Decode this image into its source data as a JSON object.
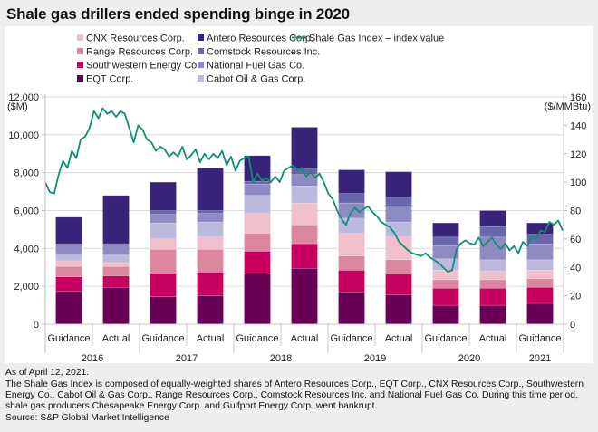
{
  "title": "Shale gas drillers ended spending binge in 2020",
  "notes": {
    "as_of": "As of April 12, 2021.",
    "description": "The Shale Gas Index is composed of equally-weighted shares of Antero Resources Corp., EQT Corp., CNX Resources Corp., Southwestern Energy Co., Cabot Oil & Gas Corp., Range Resources Corp., Comstock Resources Inc. and National Fuel Gas Co. During this time period, shale gas producers Chesapeake Energy Corp. and Gulfport Energy Corp. went bankrupt.",
    "source": "Source: S&P Global Market Intelligence"
  },
  "chart_data": {
    "type": "bar",
    "stacked": true,
    "title": "Shale gas drillers ended spending binge in 2020",
    "ylabel": "($M)",
    "y2label": "($/MMBtu)",
    "ylim": [
      0,
      12000
    ],
    "y2lim": [
      0,
      160
    ],
    "yticks": [
      "0",
      "2,000",
      "4,000",
      "6,000",
      "8,000",
      "10,000",
      "12,000"
    ],
    "y2ticks": [
      "0",
      "20",
      "40",
      "60",
      "80",
      "100",
      "120",
      "140",
      "160"
    ],
    "grid": true,
    "categories": [
      "Guidance",
      "Actual",
      "Guidance",
      "Actual",
      "Guidance",
      "Actual",
      "Guidance",
      "Actual",
      "Guidance",
      "Actual",
      "Guidance"
    ],
    "year_groups": [
      {
        "label": "2016",
        "count": 2
      },
      {
        "label": "2017",
        "count": 2
      },
      {
        "label": "2018",
        "count": 2
      },
      {
        "label": "2019",
        "count": 2
      },
      {
        "label": "2020",
        "count": 2
      },
      {
        "label": "2021",
        "count": 1
      }
    ],
    "series": [
      {
        "name": "EQT Corp.",
        "color": "#680055",
        "values": [
          1750,
          1950,
          1450,
          1500,
          2650,
          2950,
          1700,
          1550,
          1000,
          1000,
          1100
        ]
      },
      {
        "name": "Southwestern Energy Co.",
        "color": "#c8005f",
        "values": [
          750,
          600,
          1250,
          1250,
          1200,
          1300,
          1150,
          1100,
          900,
          900,
          850
        ]
      },
      {
        "name": "Range Resources Corp.",
        "color": "#dc87a0",
        "values": [
          550,
          500,
          1250,
          1200,
          950,
          1000,
          750,
          750,
          450,
          450,
          450
        ]
      },
      {
        "name": "CNX Resources Corp.",
        "color": "#efbfcb",
        "values": [
          300,
          200,
          550,
          650,
          1050,
          1150,
          1200,
          1200,
          500,
          450,
          450
        ]
      },
      {
        "name": "Cabot Oil & Gas Corp.",
        "color": "#bbbade",
        "values": [
          350,
          400,
          850,
          800,
          950,
          900,
          800,
          800,
          600,
          600,
          550
        ]
      },
      {
        "name": "National Fuel Gas Co.",
        "color": "#8e8bc3",
        "values": [
          500,
          550,
          450,
          450,
          600,
          600,
          800,
          850,
          700,
          1200,
          850
        ]
      },
      {
        "name": "Comstock Resources Inc.",
        "color": "#6a66ad",
        "values": [
          50,
          50,
          200,
          150,
          150,
          300,
          500,
          450,
          450,
          550,
          500
        ]
      },
      {
        "name": "Antero Resources Corp.",
        "color": "#37237a",
        "values": [
          1400,
          2550,
          1500,
          2250,
          1350,
          2200,
          1250,
          1350,
          750,
          850,
          600
        ]
      }
    ],
    "line": {
      "name": "Shale Gas Index – index value",
      "color": "#0e8f76",
      "axis": "right",
      "start": "2016",
      "end": "April 12, 2021",
      "values": [
        100,
        93,
        92,
        105,
        115,
        110,
        122,
        117,
        130,
        132,
        138,
        150,
        145,
        152,
        148,
        150,
        146,
        150,
        148,
        138,
        128,
        140,
        137,
        130,
        128,
        122,
        125,
        123,
        118,
        121,
        118,
        125,
        116,
        119,
        123,
        114,
        120,
        116,
        120,
        117,
        122,
        112,
        118,
        108,
        115,
        117,
        118,
        100,
        106,
        101,
        103,
        100,
        104,
        100,
        108,
        110,
        112,
        108,
        110,
        104,
        107,
        103,
        106,
        100,
        92,
        88,
        80,
        74,
        70,
        78,
        82,
        79,
        81,
        83,
        79,
        76,
        72,
        70,
        68,
        64,
        58,
        55,
        52,
        50,
        49,
        48,
        50,
        47,
        45,
        43,
        40,
        37,
        38,
        53,
        57,
        59,
        57,
        56,
        61,
        55,
        58,
        61,
        56,
        53,
        57,
        52,
        55,
        50,
        58,
        55,
        62,
        60,
        66,
        65,
        72,
        70,
        73,
        66
      ]
    }
  }
}
